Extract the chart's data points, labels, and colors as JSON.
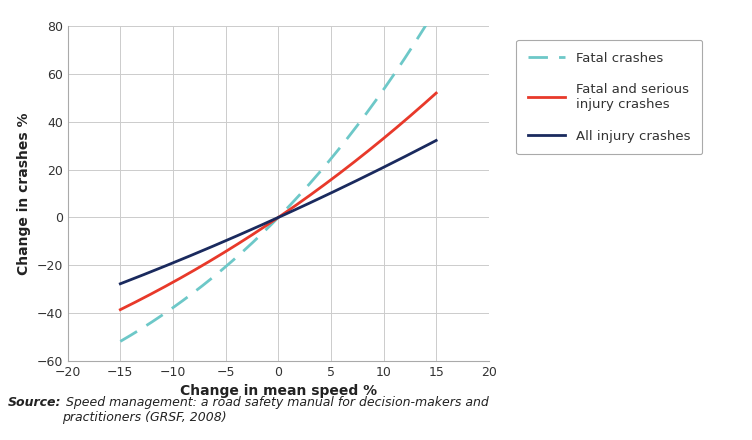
{
  "xlabel": "Change in mean speed %",
  "ylabel": "Change in crashes %",
  "xlim": [
    -20,
    20
  ],
  "ylim": [
    -60,
    80
  ],
  "xticks": [
    -20,
    -15,
    -10,
    -5,
    0,
    5,
    10,
    15,
    20
  ],
  "yticks": [
    -60,
    -40,
    -20,
    0,
    20,
    40,
    60,
    80
  ],
  "x_start": -15,
  "x_end": 15,
  "fatal_exponent": 4.5,
  "fatal_serious_exponent": 3.0,
  "all_injury_exponent": 2.0,
  "fatal_color": "#6dc8c8",
  "fatal_serious_color": "#e8392a",
  "all_injury_color": "#1a2a5e",
  "legend_labels": [
    "Fatal crashes",
    "Fatal and serious\ninjury crashes",
    "All injury crashes"
  ],
  "source_bold": "Source:",
  "source_italic": " Speed management: a road safety manual for decision-makers and\npractitioners (GRSF, 2008)",
  "bg_color": "#ffffff",
  "grid_color": "#cccccc",
  "label_fontsize": 10,
  "tick_fontsize": 9,
  "legend_fontsize": 9.5,
  "text_color": "#333333"
}
